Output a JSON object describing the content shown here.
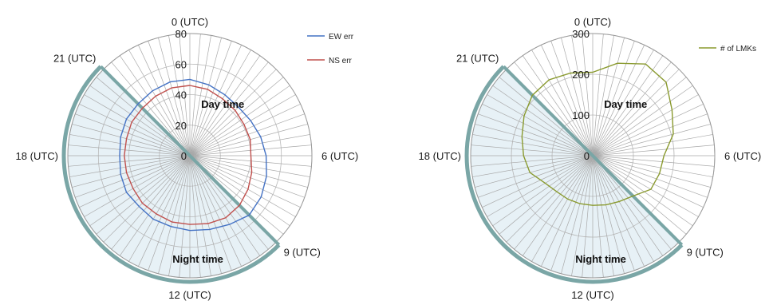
{
  "chart_data": [
    {
      "type": "radar",
      "title": "",
      "angle_labels": [
        {
          "text": "0 (UTC)",
          "hour": 0
        },
        {
          "text": "6 (UTC)",
          "hour": 6
        },
        {
          "text": "9 (UTC)",
          "hour": 9
        },
        {
          "text": "12 (UTC)",
          "hour": 12
        },
        {
          "text": "18 (UTC)",
          "hour": 18
        },
        {
          "text": "21 (UTC)",
          "hour": 21
        }
      ],
      "r_ticks": [
        "0",
        "20",
        "40",
        "60",
        "80"
      ],
      "rlim": [
        0,
        80
      ],
      "night_shading": {
        "from_hour": 9,
        "to_hour": 21
      },
      "region_labels": {
        "day": "Day time",
        "night": "Night time"
      },
      "legend_position": "top-right",
      "series": [
        {
          "name": "EW err",
          "color": "#4472c4",
          "hours": [
            0,
            1,
            2,
            3,
            4,
            5,
            6,
            7,
            8,
            9,
            10,
            11,
            12,
            13,
            14,
            15,
            16,
            17,
            18,
            19,
            20,
            21,
            22,
            23
          ],
          "values": [
            50,
            48,
            46,
            45,
            46,
            48,
            50,
            52,
            54,
            55,
            52,
            50,
            49,
            48,
            48,
            47,
            48,
            47,
            46,
            47,
            48,
            48,
            49,
            50
          ]
        },
        {
          "name": "NS err",
          "color": "#c0504d",
          "hours": [
            0,
            1,
            2,
            3,
            4,
            5,
            6,
            7,
            8,
            9,
            10,
            11,
            12,
            13,
            14,
            15,
            16,
            17,
            18,
            19,
            20,
            21,
            22,
            23
          ],
          "values": [
            46,
            45,
            43,
            42,
            41,
            41,
            40,
            42,
            44,
            46,
            47,
            46,
            45,
            45,
            44,
            44,
            43,
            43,
            43,
            43,
            44,
            44,
            45,
            46
          ]
        }
      ]
    },
    {
      "type": "radar",
      "title": "",
      "angle_labels": [
        {
          "text": "0 (UTC)",
          "hour": 0
        },
        {
          "text": "6 (UTC)",
          "hour": 6
        },
        {
          "text": "9 (UTC)",
          "hour": 9
        },
        {
          "text": "12 (UTC)",
          "hour": 12
        },
        {
          "text": "18 (UTC)",
          "hour": 18
        },
        {
          "text": "21 (UTC)",
          "hour": 21
        }
      ],
      "r_ticks": [
        "0",
        "100",
        "200",
        "300"
      ],
      "rlim": [
        0,
        300
      ],
      "night_shading": {
        "from_hour": 9,
        "to_hour": 21
      },
      "region_labels": {
        "day": "Day time",
        "night": "Night time"
      },
      "legend_position": "top-right",
      "series": [
        {
          "name": "# of LMKs",
          "color": "#8a9a2f",
          "hours": [
            0,
            1,
            2,
            3,
            4,
            5,
            6,
            7,
            8,
            9,
            10,
            11,
            12,
            13,
            14,
            15,
            16,
            17,
            18,
            19,
            20,
            21,
            22,
            23
          ],
          "values": [
            205,
            235,
            260,
            255,
            225,
            205,
            175,
            170,
            165,
            140,
            130,
            125,
            122,
            122,
            123,
            125,
            135,
            160,
            170,
            180,
            195,
            210,
            215,
            210
          ]
        }
      ]
    }
  ]
}
